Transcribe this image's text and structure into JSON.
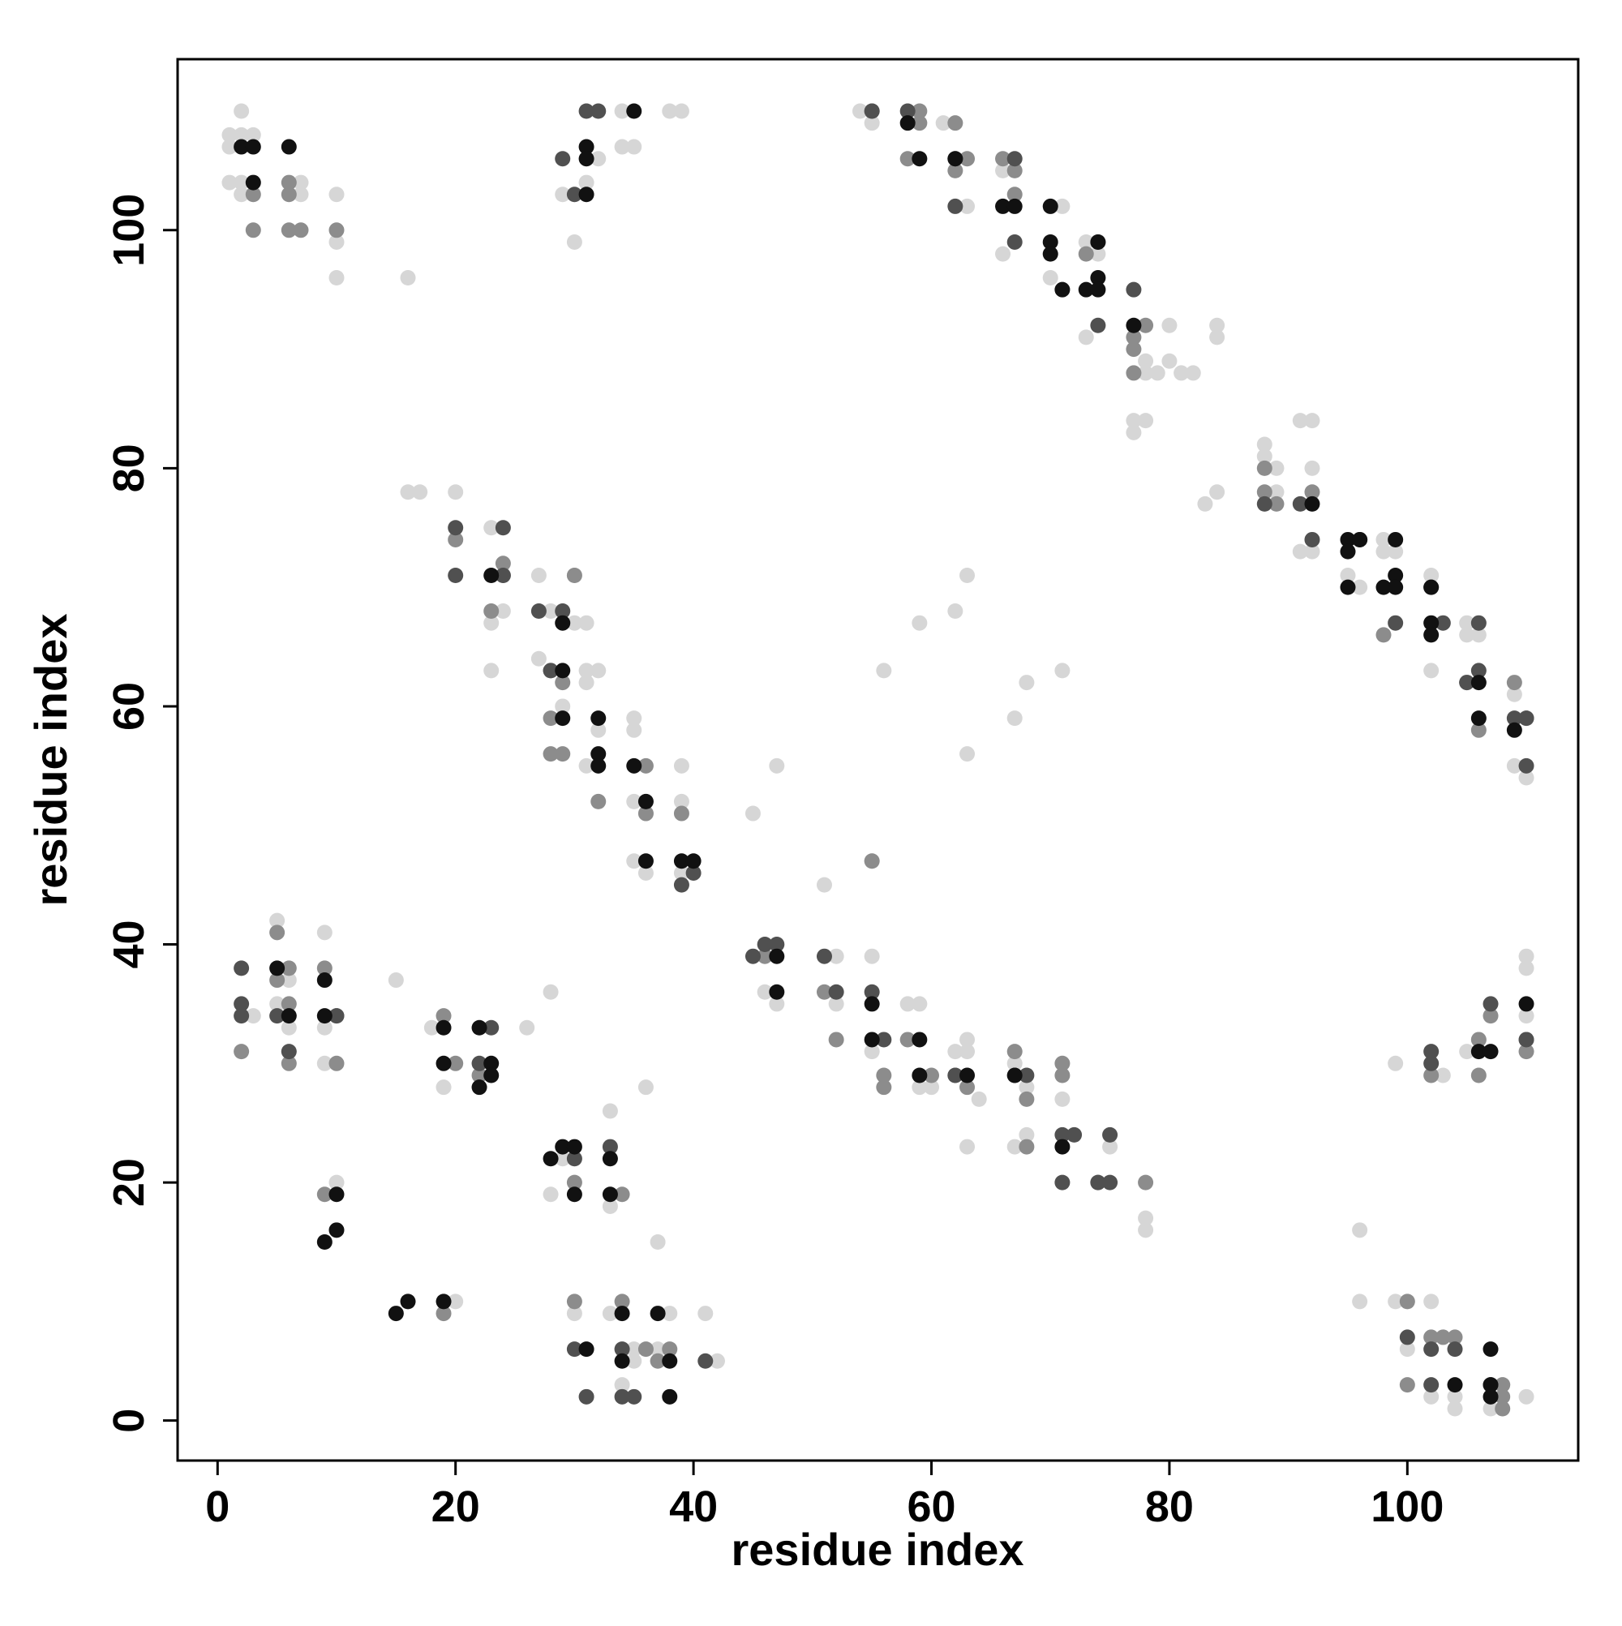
{
  "chart_data": {
    "type": "scatter",
    "xlabel": "residue index",
    "ylabel": "residue index",
    "xlim": [
      -3.36,
      114.36
    ],
    "ylim": [
      -3.36,
      114.36
    ],
    "xticks": [
      0,
      20,
      40,
      60,
      80,
      100
    ],
    "yticks": [
      0,
      20,
      40,
      60,
      80,
      100
    ],
    "grid": false,
    "series": [
      {
        "color": "#d6d6d6",
        "x": [
          1,
          1,
          1,
          2,
          2,
          3,
          2,
          2,
          7,
          7,
          10,
          10,
          10,
          16,
          29,
          30,
          32,
          34,
          38,
          39,
          34,
          35,
          31,
          54,
          55,
          61,
          63,
          66,
          66,
          70,
          71,
          71,
          73,
          73,
          74,
          78,
          78,
          79,
          80,
          80,
          81,
          82,
          84,
          84,
          77,
          78,
          77,
          83,
          84,
          88,
          88,
          89,
          89,
          91,
          92,
          92,
          91,
          92,
          95,
          96,
          98,
          98,
          99,
          102,
          102,
          105,
          106,
          105,
          109,
          109,
          110,
          16,
          17,
          20,
          23,
          23,
          23,
          24,
          27,
          27,
          28,
          29,
          30,
          30,
          31,
          31,
          31,
          32,
          31,
          32,
          35,
          35,
          35,
          36,
          35,
          36,
          39,
          39,
          39,
          3,
          5,
          5,
          6,
          6,
          9,
          9,
          9,
          15,
          18,
          19,
          26,
          28,
          10,
          20,
          28,
          29,
          33,
          33,
          36,
          37,
          30,
          33,
          34,
          35,
          35,
          37,
          38,
          41,
          42,
          45,
          47,
          51,
          55,
          46,
          47,
          52,
          52,
          55,
          55,
          58,
          59,
          59,
          60,
          62,
          63,
          63,
          64,
          63,
          67,
          67,
          68,
          68,
          71,
          75,
          78,
          78,
          59,
          62,
          63,
          56,
          63,
          67,
          68,
          71,
          96,
          96,
          99,
          99,
          102,
          102,
          103,
          104,
          104,
          105,
          106,
          107,
          108,
          108,
          110,
          103,
          110,
          110,
          110,
          100
        ],
        "y": [
          108,
          107,
          104,
          110,
          108,
          108,
          104,
          103,
          103,
          104,
          103,
          99,
          96,
          96,
          103,
          99,
          106,
          110,
          110,
          110,
          107,
          107,
          104,
          110,
          109,
          109,
          102,
          105,
          98,
          96,
          102,
          95,
          99,
          91,
          98,
          88,
          89,
          88,
          92,
          89,
          88,
          88,
          92,
          91,
          84,
          84,
          83,
          77,
          78,
          82,
          81,
          80,
          78,
          84,
          84,
          80,
          73,
          73,
          71,
          70,
          74,
          73,
          73,
          71,
          63,
          67,
          66,
          66,
          61,
          55,
          54,
          78,
          78,
          78,
          75,
          67,
          63,
          68,
          71,
          64,
          68,
          60,
          71,
          67,
          67,
          63,
          62,
          63,
          55,
          58,
          59,
          58,
          52,
          51,
          47,
          46,
          55,
          52,
          46,
          34,
          42,
          35,
          37,
          33,
          41,
          33,
          30,
          37,
          33,
          28,
          33,
          36,
          20,
          10,
          19,
          22,
          26,
          18,
          28,
          15,
          9,
          9,
          3,
          5,
          6,
          6,
          9,
          9,
          5,
          51,
          55,
          45,
          47,
          36,
          35,
          39,
          35,
          39,
          31,
          35,
          35,
          28,
          28,
          31,
          32,
          31,
          27,
          23,
          23,
          30,
          28,
          24,
          27,
          23,
          17,
          16,
          67,
          68,
          71,
          63,
          56,
          59,
          62,
          63,
          16,
          10,
          10,
          30,
          10,
          2,
          7,
          1,
          2,
          31,
          32,
          1,
          1,
          3,
          2,
          29,
          39,
          38,
          34,
          6
        ]
      },
      {
        "color": "#8c8c8c",
        "x": [
          3,
          3,
          6,
          6,
          6,
          7,
          10,
          55,
          58,
          59,
          59,
          62,
          63,
          62,
          67,
          67,
          66,
          73,
          77,
          77,
          78,
          77,
          88,
          88,
          89,
          92,
          98,
          105,
          106,
          109,
          110,
          20,
          23,
          24,
          28,
          28,
          28,
          29,
          29,
          30,
          32,
          36,
          36,
          39,
          24,
          2,
          5,
          5,
          6,
          6,
          6,
          9,
          10,
          10,
          19,
          20,
          22,
          9,
          19,
          30,
          34,
          30,
          34,
          36,
          38,
          37,
          46,
          51,
          52,
          56,
          56,
          58,
          60,
          62,
          63,
          67,
          68,
          68,
          71,
          71,
          74,
          78,
          55,
          100,
          100,
          102,
          103,
          102,
          104,
          106,
          106,
          107,
          108,
          108,
          110,
          110,
          108
        ],
        "y": [
          103,
          100,
          104,
          103,
          100,
          100,
          100,
          110,
          106,
          109,
          110,
          109,
          106,
          105,
          103,
          105,
          106,
          98,
          91,
          90,
          92,
          88,
          80,
          78,
          77,
          78,
          66,
          62,
          58,
          62,
          59,
          74,
          68,
          72,
          63,
          59,
          56,
          62,
          56,
          71,
          52,
          55,
          51,
          51,
          71,
          31,
          41,
          37,
          38,
          35,
          30,
          38,
          30,
          34,
          34,
          30,
          29,
          19,
          9,
          20,
          19,
          10,
          10,
          6,
          6,
          5,
          39,
          36,
          32,
          29,
          28,
          32,
          29,
          29,
          28,
          31,
          27,
          23,
          30,
          29,
          20,
          20,
          47,
          10,
          3,
          7,
          7,
          29,
          7,
          29,
          32,
          34,
          3,
          2,
          32,
          31,
          1
        ]
      },
      {
        "color": "#505050",
        "x": [
          29,
          31,
          32,
          30,
          55,
          58,
          62,
          62,
          67,
          67,
          74,
          74,
          77,
          88,
          91,
          92,
          96,
          99,
          102,
          103,
          106,
          106,
          105,
          109,
          110,
          110,
          20,
          20,
          24,
          24,
          27,
          28,
          29,
          39,
          40,
          2,
          2,
          2,
          5,
          6,
          10,
          22,
          23,
          30,
          33,
          30,
          31,
          34,
          34,
          35,
          41,
          45,
          46,
          47,
          51,
          52,
          55,
          56,
          62,
          67,
          68,
          71,
          72,
          71,
          74,
          75,
          75,
          100,
          102,
          102,
          102,
          102,
          104,
          107,
          107,
          110
        ],
        "y": [
          106,
          110,
          110,
          103,
          110,
          110,
          106,
          102,
          106,
          99,
          92,
          99,
          95,
          77,
          77,
          74,
          74,
          67,
          70,
          67,
          67,
          63,
          62,
          59,
          59,
          55,
          75,
          71,
          75,
          71,
          68,
          63,
          68,
          45,
          46,
          38,
          35,
          34,
          34,
          31,
          34,
          30,
          33,
          22,
          23,
          6,
          2,
          6,
          2,
          2,
          5,
          39,
          40,
          40,
          39,
          36,
          36,
          32,
          29,
          29,
          29,
          24,
          24,
          20,
          20,
          24,
          20,
          7,
          31,
          30,
          6,
          3,
          6,
          35,
          3,
          32
        ]
      },
      {
        "color": "#111111",
        "x": [
          2,
          3,
          3,
          6,
          31,
          31,
          31,
          35,
          58,
          59,
          62,
          66,
          67,
          70,
          70,
          70,
          71,
          73,
          74,
          74,
          74,
          77,
          92,
          95,
          95,
          95,
          96,
          98,
          99,
          99,
          99,
          102,
          102,
          102,
          106,
          106,
          109,
          110,
          23,
          29,
          29,
          29,
          32,
          32,
          32,
          35,
          36,
          36,
          39,
          40,
          5,
          6,
          9,
          9,
          19,
          19,
          22,
          22,
          23,
          23,
          10,
          9,
          10,
          15,
          16,
          19,
          28,
          29,
          30,
          30,
          33,
          33,
          31,
          34,
          34,
          37,
          38,
          38,
          47,
          47,
          55,
          55,
          59,
          59,
          63,
          67,
          71,
          104,
          106,
          107,
          107,
          107,
          107
        ],
        "y": [
          107,
          107,
          104,
          107,
          107,
          106,
          103,
          110,
          109,
          106,
          106,
          102,
          102,
          102,
          99,
          98,
          95,
          95,
          99,
          96,
          95,
          92,
          77,
          74,
          73,
          70,
          74,
          70,
          71,
          70,
          74,
          70,
          67,
          66,
          62,
          59,
          58,
          35,
          71,
          67,
          63,
          59,
          59,
          56,
          55,
          55,
          52,
          47,
          47,
          47,
          38,
          34,
          37,
          34,
          33,
          30,
          33,
          28,
          30,
          29,
          19,
          15,
          16,
          9,
          10,
          10,
          22,
          23,
          23,
          19,
          22,
          19,
          6,
          9,
          5,
          9,
          5,
          2,
          39,
          36,
          35,
          32,
          32,
          29,
          29,
          29,
          23,
          3,
          31,
          31,
          6,
          2,
          3
        ]
      }
    ]
  }
}
